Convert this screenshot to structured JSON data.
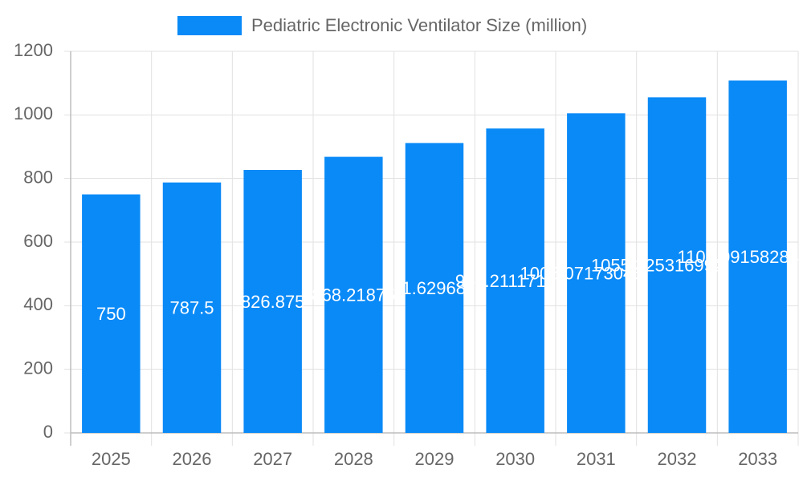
{
  "chart_data": {
    "type": "bar",
    "categories": [
      "2025",
      "2026",
      "2027",
      "2028",
      "2029",
      "2030",
      "2031",
      "2032",
      "2033"
    ],
    "series": [
      {
        "name": "Pediatric Electronic Ventilator Size (million)",
        "color": "#0a8af7",
        "values": [
          750,
          787.5,
          826.875,
          868.21875,
          911.6296875,
          957.211171875,
          1005.07173046875,
          1055.3253169921875,
          1108.091582841797
        ]
      }
    ],
    "ylim": [
      0,
      1200
    ],
    "yticks": [
      0,
      200,
      400,
      600,
      800,
      1000,
      1200
    ],
    "grid": true,
    "legend": "top"
  }
}
